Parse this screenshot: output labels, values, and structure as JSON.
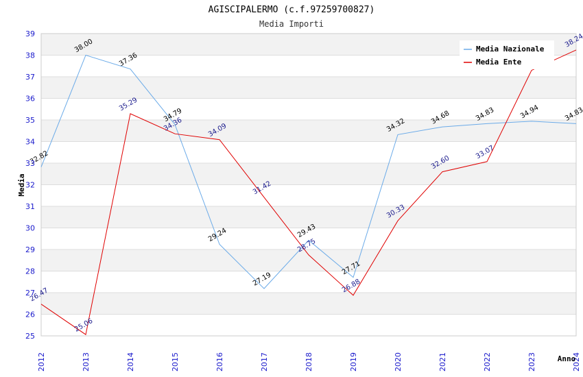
{
  "chart_data": {
    "type": "line",
    "title": "AGISCIPALERMO (c.f.97259700827)",
    "subtitle": "Media Importi",
    "xlabel": "Anno",
    "ylabel": "Media",
    "x": [
      "2012",
      "2013",
      "2014",
      "2015",
      "2016",
      "2017",
      "2018",
      "2019",
      "2020",
      "2021",
      "2022",
      "2023",
      "2024"
    ],
    "ylim": [
      25,
      39
    ],
    "yticks": [
      25,
      26,
      27,
      28,
      29,
      30,
      31,
      32,
      33,
      34,
      35,
      36,
      37,
      38,
      39
    ],
    "series": [
      {
        "name": "Media Nazionale",
        "color": "#6aaae8",
        "values": [
          32.82,
          38.0,
          37.36,
          34.79,
          29.24,
          27.19,
          29.43,
          27.71,
          34.32,
          34.68,
          34.83,
          34.94,
          34.83
        ],
        "labels": [
          "32.82",
          "38.00",
          "37.36",
          "34.79",
          "29.24",
          "27.19",
          "29.43",
          "27.71",
          "34.32",
          "34.68",
          "34.83",
          "34.94",
          "34.83"
        ]
      },
      {
        "name": "Media Ente",
        "color": "#e00000",
        "values": [
          26.47,
          25.06,
          35.29,
          34.36,
          34.09,
          31.42,
          28.75,
          26.88,
          30.33,
          32.6,
          33.07,
          37.3,
          38.24
        ],
        "labels": [
          "26.47",
          "25.06",
          "35.29",
          "34.36",
          "34.09",
          "31.42",
          "28.75",
          "26.88",
          "30.33",
          "32.60",
          "33.07",
          "",
          "38.24"
        ]
      }
    ],
    "legend": "top-right",
    "grid": true
  }
}
